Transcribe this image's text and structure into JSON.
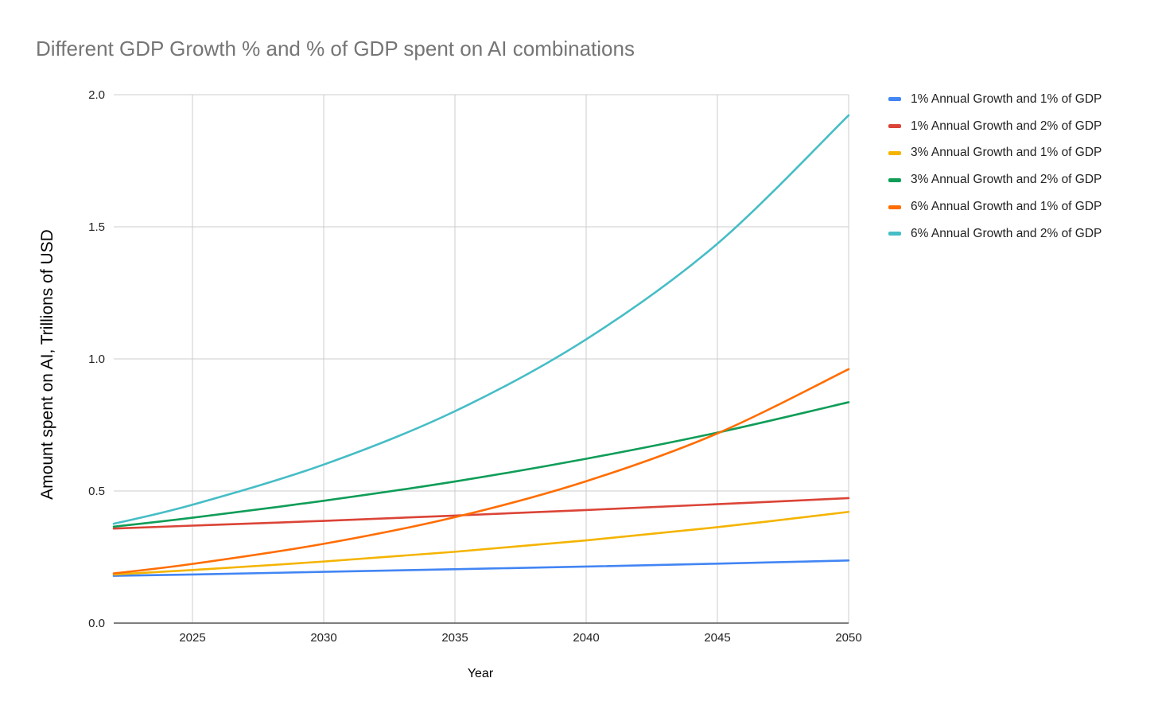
{
  "chart_data": {
    "type": "line",
    "title": "Different GDP Growth % and % of GDP spent on AI combinations",
    "xlabel": "Year",
    "ylabel": "Amount spent on AI, Trillions of USD",
    "xlim": [
      2022,
      2050
    ],
    "ylim": [
      0,
      2
    ],
    "x_ticks": [
      2025,
      2030,
      2035,
      2040,
      2045,
      2050
    ],
    "y_ticks": [
      "0.0",
      "0.5",
      "1.0",
      "1.5",
      "2.0"
    ],
    "grid": true,
    "legend_position": "right",
    "series": [
      {
        "name": "1% Annual Growth and 1% of GDP",
        "color": "#4285f4",
        "x": [
          2022,
          2025,
          2030,
          2035,
          2040,
          2045,
          2050
        ],
        "y": [
          0.179,
          0.184,
          0.194,
          0.204,
          0.214,
          0.225,
          0.237
        ]
      },
      {
        "name": "1% Annual Growth and 2% of GDP",
        "color": "#db4437",
        "x": [
          2022,
          2025,
          2030,
          2035,
          2040,
          2045,
          2050
        ],
        "y": [
          0.358,
          0.369,
          0.387,
          0.407,
          0.428,
          0.45,
          0.473
        ]
      },
      {
        "name": "3% Annual Growth and 1% of GDP",
        "color": "#f4b400",
        "x": [
          2022,
          2025,
          2030,
          2035,
          2040,
          2045,
          2050
        ],
        "y": [
          0.184,
          0.201,
          0.233,
          0.27,
          0.313,
          0.363,
          0.421
        ]
      },
      {
        "name": "3% Annual Growth and 2% of GDP",
        "color": "#0f9d58",
        "x": [
          2022,
          2025,
          2030,
          2035,
          2040,
          2045,
          2050
        ],
        "y": [
          0.365,
          0.399,
          0.463,
          0.536,
          0.622,
          0.721,
          0.836
        ]
      },
      {
        "name": "6% Annual Growth and 1% of GDP",
        "color": "#ff6d01",
        "x": [
          2022,
          2025,
          2030,
          2035,
          2040,
          2045,
          2050
        ],
        "y": [
          0.188,
          0.224,
          0.3,
          0.401,
          0.537,
          0.718,
          0.961
        ]
      },
      {
        "name": "6% Annual Growth and 2% of GDP",
        "color": "#46bdc6",
        "x": [
          2022,
          2025,
          2030,
          2035,
          2040,
          2045,
          2050
        ],
        "y": [
          0.376,
          0.448,
          0.6,
          0.802,
          1.074,
          1.436,
          1.922
        ]
      }
    ]
  }
}
